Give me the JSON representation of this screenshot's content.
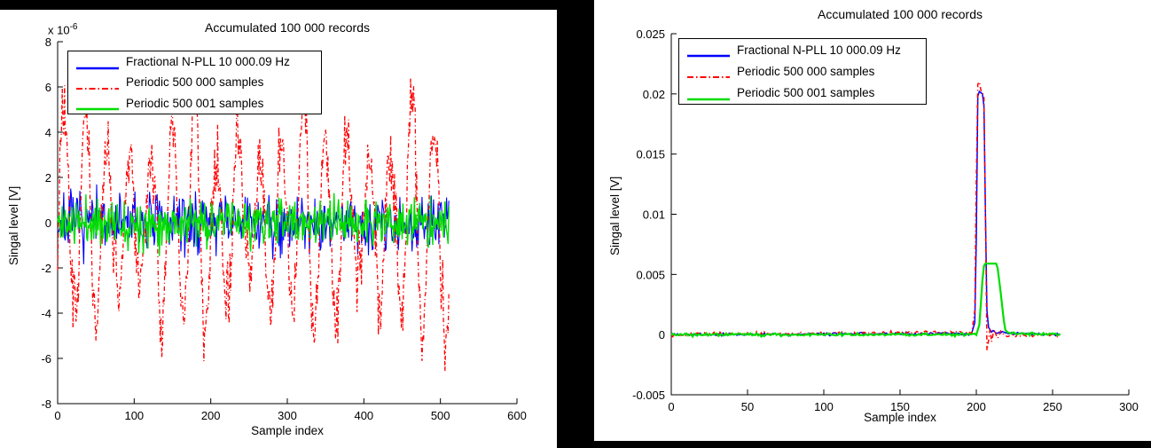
{
  "chart_data": [
    {
      "type": "line",
      "title": "Accumulated 100 000 records",
      "xlabel": "Sample index",
      "ylabel": "Singal level [V]",
      "y_scale_prefix": "x 10",
      "y_scale_exponent": "-6",
      "xlim": [
        0,
        600
      ],
      "ylim": [
        -8e-06,
        8e-06
      ],
      "grid": false,
      "legend_position": "top-left",
      "xticks": [
        0,
        100,
        200,
        300,
        400,
        500,
        600
      ],
      "yticks": [
        {
          "v": 8e-06,
          "label": "8"
        },
        {
          "v": 6e-06,
          "label": "6"
        },
        {
          "v": 4e-06,
          "label": "4"
        },
        {
          "v": 2e-06,
          "label": "2"
        },
        {
          "v": 0,
          "label": "0"
        },
        {
          "v": -2e-06,
          "label": "-2"
        },
        {
          "v": -4e-06,
          "label": "-4"
        },
        {
          "v": -6e-06,
          "label": "-6"
        },
        {
          "v": -8e-06,
          "label": "-8"
        }
      ],
      "n_samples": 512,
      "series": [
        {
          "name": "Fractional N-PLL 10 000.09 Hz",
          "color": "#0000ff",
          "style": "solid",
          "width": 1.1,
          "summary": "zero-mean noise band, roughly +/-2e-6 V over samples 0-511",
          "gen": {
            "kind": "noise",
            "std": 6.5e-07,
            "clip": 2.1e-06,
            "seed": 7
          }
        },
        {
          "name": "Periodic 500 000 samples",
          "color": "#ff0000",
          "style": "dashdot",
          "width": 1.3,
          "summary": "quasi-periodic bursts, ~18 cycles over 512 samples, peaks to +6.3e-6 V, troughs to -7.4e-6 V (deepest near samples 140, 300, 455)",
          "gen": {
            "kind": "mod-sine",
            "period": 28.44,
            "phase": -0.2,
            "base_amp": 4e-06,
            "mods": [
              {
                "period": 153,
                "phase": 0.7,
                "amp": 1.2e-06
              },
              {
                "period": 47,
                "phase": 2.1,
                "amp": 1e-06
              }
            ],
            "noise": 8e-07,
            "clip_hi": 6.4e-06,
            "clip_lo": -7.4e-06,
            "seed": 3
          }
        },
        {
          "name": "Periodic 500 001 samples",
          "color": "#00dd00",
          "style": "solid",
          "width": 1.4,
          "summary": "zero-mean noise band, roughly +/-1.5e-6 V over samples 0-511",
          "gen": {
            "kind": "noise",
            "std": 5e-07,
            "clip": 1.5e-06,
            "seed": 11
          }
        }
      ]
    },
    {
      "type": "line",
      "title": "Accumulated 100 000 records",
      "xlabel": "Sample index",
      "ylabel": "Singal level [V]",
      "xlim": [
        0,
        300
      ],
      "ylim": [
        -0.005,
        0.025
      ],
      "grid": false,
      "legend_position": "top-left",
      "xticks": [
        0,
        50,
        100,
        150,
        200,
        250,
        300
      ],
      "yticks": [
        {
          "v": 0.025,
          "label": "0.025"
        },
        {
          "v": 0.02,
          "label": "0.02"
        },
        {
          "v": 0.015,
          "label": "0.015"
        },
        {
          "v": 0.01,
          "label": "0.01"
        },
        {
          "v": 0.005,
          "label": "0.005"
        },
        {
          "v": 0,
          "label": "0"
        },
        {
          "v": -0.005,
          "label": "-0.005"
        }
      ],
      "n_samples": 256,
      "series": [
        {
          "name": "Fractional N-PLL 10 000.09 Hz",
          "color": "#0000ff",
          "style": "solid",
          "width": 1.5,
          "summary": "flat near 0 V, narrow spike peaking ~0.0202 V at samples ~201-205, back to 0 by ~208",
          "gen": {
            "kind": "anchors",
            "noise": 6e-05,
            "seed": 5,
            "points": [
              [
                0,
                0
              ],
              [
                197,
                0.0001
              ],
              [
                199,
                0.001
              ],
              [
                200,
                0.008
              ],
              [
                201,
                0.0198
              ],
              [
                202,
                0.0202
              ],
              [
                204,
                0.02
              ],
              [
                205,
                0.019
              ],
              [
                206,
                0.01
              ],
              [
                207,
                0.002
              ],
              [
                208,
                0.0006
              ],
              [
                210,
                0.0002
              ],
              [
                255,
                0
              ]
            ]
          }
        },
        {
          "name": "Periodic 500 000 samples",
          "color": "#ff0000",
          "style": "dashdot",
          "width": 1.5,
          "summary": "flat near 0 V, spike peaking ~0.021 V at ~201-205, undershoot to ~-0.0013 V at ~207 with ringing to ~218",
          "gen": {
            "kind": "anchors",
            "noise": 7e-05,
            "seed": 13,
            "points": [
              [
                0,
                0
              ],
              [
                197,
                0.0002
              ],
              [
                199,
                0.002
              ],
              [
                200,
                0.013
              ],
              [
                201,
                0.0208
              ],
              [
                202,
                0.021
              ],
              [
                203,
                0.0203
              ],
              [
                205,
                0.0198
              ],
              [
                206,
                0.01
              ],
              [
                207,
                -0.0013
              ],
              [
                208,
                -0.0005
              ],
              [
                209,
                0.0005
              ],
              [
                210,
                -0.0006
              ],
              [
                212,
                0.0004
              ],
              [
                214,
                -0.0003
              ],
              [
                216,
                0.0002
              ],
              [
                219,
                -0.0001
              ],
              [
                255,
                0
              ]
            ]
          }
        },
        {
          "name": "Periodic 500 001 samples",
          "color": "#00dd00",
          "style": "solid",
          "width": 2.2,
          "summary": "flat near 0 V, trapezoid pulse ~0.0059 V plateau from ~206 to ~213, back to 0 by ~220",
          "gen": {
            "kind": "anchors",
            "noise": 6e-05,
            "seed": 21,
            "points": [
              [
                0,
                0
              ],
              [
                200,
                0
              ],
              [
                202,
                0.0008
              ],
              [
                204,
                0.0045
              ],
              [
                205,
                0.0057
              ],
              [
                206,
                0.0059
              ],
              [
                213,
                0.0059
              ],
              [
                214,
                0.0055
              ],
              [
                216,
                0.0035
              ],
              [
                218,
                0.0012
              ],
              [
                219,
                0.0004
              ],
              [
                221,
                0.0001
              ],
              [
                255,
                0
              ]
            ]
          }
        }
      ]
    }
  ]
}
